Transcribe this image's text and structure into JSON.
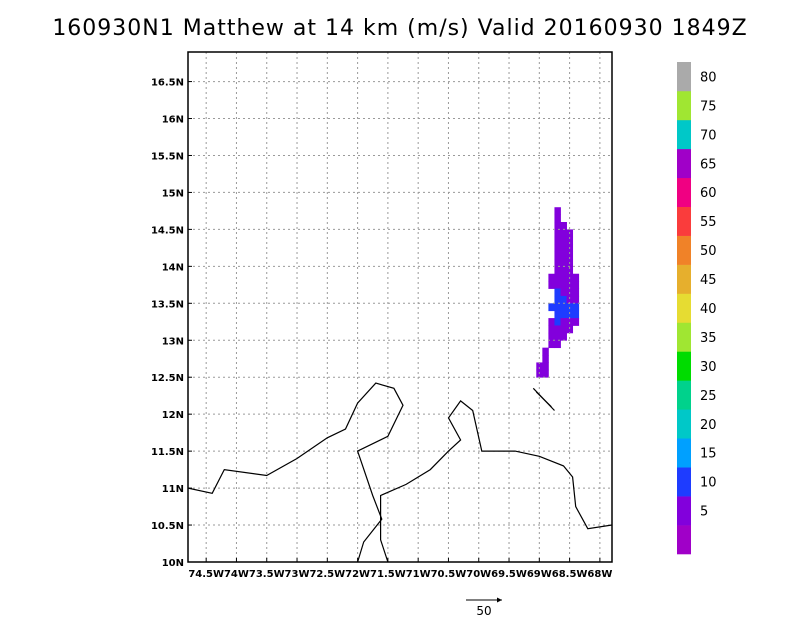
{
  "title": "160930N1 Matthew at 14 km (m/s) Valid 20160930 1849Z",
  "map": {
    "lon_range": [
      -74.8,
      -67.8
    ],
    "lat_range": [
      10.0,
      16.9
    ],
    "lon_ticks": [
      {
        "value": -74.5,
        "label": "74.5W"
      },
      {
        "value": -74.0,
        "label": "74W"
      },
      {
        "value": -73.5,
        "label": "73.5W"
      },
      {
        "value": -73.0,
        "label": "73W"
      },
      {
        "value": -72.5,
        "label": "72.5W"
      },
      {
        "value": -72.0,
        "label": "72W"
      },
      {
        "value": -71.5,
        "label": "71.5W"
      },
      {
        "value": -71.0,
        "label": "71W"
      },
      {
        "value": -70.5,
        "label": "70.5W"
      },
      {
        "value": -70.0,
        "label": "70W"
      },
      {
        "value": -69.5,
        "label": "69.5W"
      },
      {
        "value": -69.0,
        "label": "69W"
      },
      {
        "value": -68.5,
        "label": "68.5W"
      },
      {
        "value": -68.0,
        "label": "68W"
      }
    ],
    "lat_ticks": [
      {
        "value": 10.0,
        "label": "10N"
      },
      {
        "value": 10.5,
        "label": "10.5N"
      },
      {
        "value": 11.0,
        "label": "11N"
      },
      {
        "value": 11.5,
        "label": "11.5N"
      },
      {
        "value": 12.0,
        "label": "12N"
      },
      {
        "value": 12.5,
        "label": "12.5N"
      },
      {
        "value": 13.0,
        "label": "13N"
      },
      {
        "value": 13.5,
        "label": "13.5N"
      },
      {
        "value": 14.0,
        "label": "14N"
      },
      {
        "value": 14.5,
        "label": "14.5N"
      },
      {
        "value": 15.0,
        "label": "15N"
      },
      {
        "value": 15.5,
        "label": "15.5N"
      },
      {
        "value": 16.0,
        "label": "16N"
      },
      {
        "value": 16.5,
        "label": "16.5N"
      }
    ],
    "grid": true,
    "coastlines": [
      [
        [
          -74.8,
          11.0
        ],
        [
          -74.4,
          10.93
        ],
        [
          -74.2,
          11.25
        ],
        [
          -73.5,
          11.17
        ],
        [
          -73.0,
          11.4
        ],
        [
          -72.5,
          11.68
        ],
        [
          -72.2,
          11.8
        ],
        [
          -72.0,
          12.15
        ],
        [
          -71.7,
          12.42
        ],
        [
          -71.4,
          12.35
        ],
        [
          -71.25,
          12.12
        ],
        [
          -71.5,
          11.7
        ],
        [
          -72.0,
          11.5
        ],
        [
          -71.75,
          10.9
        ],
        [
          -71.6,
          10.58
        ],
        [
          -71.9,
          10.27
        ],
        [
          -72.0,
          10.0
        ]
      ],
      [
        [
          -71.5,
          10.0
        ],
        [
          -71.62,
          10.3
        ],
        [
          -71.62,
          10.9
        ],
        [
          -71.2,
          11.05
        ],
        [
          -70.8,
          11.25
        ],
        [
          -70.5,
          11.5
        ],
        [
          -70.3,
          11.65
        ],
        [
          -70.5,
          11.95
        ],
        [
          -70.3,
          12.18
        ],
        [
          -70.1,
          12.05
        ],
        [
          -69.95,
          11.5
        ],
        [
          -69.4,
          11.5
        ],
        [
          -69.0,
          11.43
        ],
        [
          -68.6,
          11.3
        ],
        [
          -68.45,
          11.15
        ],
        [
          -68.4,
          10.75
        ],
        [
          -68.2,
          10.45
        ],
        [
          -67.8,
          10.5
        ]
      ],
      [
        [
          -69.1,
          12.35
        ],
        [
          -68.75,
          12.05
        ]
      ],
      [
        [
          -69.05,
          12.3
        ],
        [
          -68.8,
          12.1
        ]
      ]
    ],
    "wind_cells": [
      {
        "lon": -68.7,
        "lat": 14.75,
        "value": 5
      },
      {
        "lon": -68.7,
        "lat": 14.65,
        "value": 5
      },
      {
        "lon": -68.7,
        "lat": 14.55,
        "value": 5
      },
      {
        "lon": -68.6,
        "lat": 14.55,
        "value": 5
      },
      {
        "lon": -68.7,
        "lat": 14.45,
        "value": 5
      },
      {
        "lon": -68.6,
        "lat": 14.45,
        "value": 5
      },
      {
        "lon": -68.5,
        "lat": 14.45,
        "value": 5
      },
      {
        "lon": -68.7,
        "lat": 14.35,
        "value": 5
      },
      {
        "lon": -68.6,
        "lat": 14.35,
        "value": 5
      },
      {
        "lon": -68.5,
        "lat": 14.35,
        "value": 5
      },
      {
        "lon": -68.7,
        "lat": 14.25,
        "value": 5
      },
      {
        "lon": -68.6,
        "lat": 14.25,
        "value": 5
      },
      {
        "lon": -68.5,
        "lat": 14.25,
        "value": 5
      },
      {
        "lon": -68.7,
        "lat": 14.15,
        "value": 5
      },
      {
        "lon": -68.6,
        "lat": 14.15,
        "value": 5
      },
      {
        "lon": -68.5,
        "lat": 14.15,
        "value": 5
      },
      {
        "lon": -68.7,
        "lat": 14.05,
        "value": 5
      },
      {
        "lon": -68.6,
        "lat": 14.05,
        "value": 5
      },
      {
        "lon": -68.5,
        "lat": 14.05,
        "value": 5
      },
      {
        "lon": -68.7,
        "lat": 13.95,
        "value": 5
      },
      {
        "lon": -68.6,
        "lat": 13.95,
        "value": 5
      },
      {
        "lon": -68.5,
        "lat": 13.95,
        "value": 5
      },
      {
        "lon": -68.8,
        "lat": 13.85,
        "value": 5
      },
      {
        "lon": -68.7,
        "lat": 13.85,
        "value": 5
      },
      {
        "lon": -68.6,
        "lat": 13.85,
        "value": 5
      },
      {
        "lon": -68.5,
        "lat": 13.85,
        "value": 5
      },
      {
        "lon": -68.4,
        "lat": 13.85,
        "value": 5
      },
      {
        "lon": -68.8,
        "lat": 13.75,
        "value": 5
      },
      {
        "lon": -68.7,
        "lat": 13.75,
        "value": 5
      },
      {
        "lon": -68.6,
        "lat": 13.75,
        "value": 5
      },
      {
        "lon": -68.5,
        "lat": 13.75,
        "value": 5
      },
      {
        "lon": -68.4,
        "lat": 13.75,
        "value": 5
      },
      {
        "lon": -68.7,
        "lat": 13.65,
        "value": 10
      },
      {
        "lon": -68.6,
        "lat": 13.65,
        "value": 5
      },
      {
        "lon": -68.5,
        "lat": 13.65,
        "value": 5
      },
      {
        "lon": -68.4,
        "lat": 13.65,
        "value": 5
      },
      {
        "lon": -68.7,
        "lat": 13.55,
        "value": 10
      },
      {
        "lon": -68.6,
        "lat": 13.55,
        "value": 10
      },
      {
        "lon": -68.5,
        "lat": 13.55,
        "value": 5
      },
      {
        "lon": -68.4,
        "lat": 13.55,
        "value": 5
      },
      {
        "lon": -68.8,
        "lat": 13.45,
        "value": 10
      },
      {
        "lon": -68.7,
        "lat": 13.45,
        "value": 10
      },
      {
        "lon": -68.6,
        "lat": 13.45,
        "value": 10
      },
      {
        "lon": -68.5,
        "lat": 13.45,
        "value": 10
      },
      {
        "lon": -68.4,
        "lat": 13.45,
        "value": 10
      },
      {
        "lon": -68.7,
        "lat": 13.35,
        "value": 10
      },
      {
        "lon": -68.6,
        "lat": 13.35,
        "value": 10
      },
      {
        "lon": -68.5,
        "lat": 13.35,
        "value": 10
      },
      {
        "lon": -68.4,
        "lat": 13.35,
        "value": 10
      },
      {
        "lon": -68.8,
        "lat": 13.25,
        "value": 5
      },
      {
        "lon": -68.7,
        "lat": 13.25,
        "value": 10
      },
      {
        "lon": -68.6,
        "lat": 13.25,
        "value": 5
      },
      {
        "lon": -68.5,
        "lat": 13.25,
        "value": 5
      },
      {
        "lon": -68.4,
        "lat": 13.25,
        "value": 5
      },
      {
        "lon": -68.8,
        "lat": 13.15,
        "value": 5
      },
      {
        "lon": -68.7,
        "lat": 13.15,
        "value": 5
      },
      {
        "lon": -68.6,
        "lat": 13.15,
        "value": 5
      },
      {
        "lon": -68.5,
        "lat": 13.15,
        "value": 5
      },
      {
        "lon": -68.8,
        "lat": 13.05,
        "value": 5
      },
      {
        "lon": -68.7,
        "lat": 13.05,
        "value": 5
      },
      {
        "lon": -68.6,
        "lat": 13.05,
        "value": 5
      },
      {
        "lon": -68.8,
        "lat": 12.95,
        "value": 5
      },
      {
        "lon": -68.7,
        "lat": 12.95,
        "value": 5
      },
      {
        "lon": -68.9,
        "lat": 12.85,
        "value": 5
      },
      {
        "lon": -68.9,
        "lat": 12.75,
        "value": 5
      },
      {
        "lon": -69.0,
        "lat": 12.65,
        "value": 5
      },
      {
        "lon": -68.9,
        "lat": 12.65,
        "value": 5
      },
      {
        "lon": -69.0,
        "lat": 12.55,
        "value": 5
      },
      {
        "lon": -68.9,
        "lat": 12.55,
        "value": 5
      }
    ],
    "vector_scale_label": "50"
  },
  "colorbar": {
    "levels": [
      {
        "label": "",
        "color": "#a000c8"
      },
      {
        "label": "5",
        "color": "#8200dc"
      },
      {
        "label": "10",
        "color": "#1e3cff"
      },
      {
        "label": "15",
        "color": "#00a0ff"
      },
      {
        "label": "20",
        "color": "#00c8c8"
      },
      {
        "label": "25",
        "color": "#00d28c"
      },
      {
        "label": "30",
        "color": "#00dc00"
      },
      {
        "label": "35",
        "color": "#a0e632"
      },
      {
        "label": "40",
        "color": "#e6dc32"
      },
      {
        "label": "45",
        "color": "#e6af2d"
      },
      {
        "label": "50",
        "color": "#f08228"
      },
      {
        "label": "55",
        "color": "#fa3c3c"
      },
      {
        "label": "60",
        "color": "#f00082"
      },
      {
        "label": "65",
        "color": "#a000c8"
      },
      {
        "label": "70",
        "color": "#00c8c8"
      },
      {
        "label": "75",
        "color": "#a0e632"
      },
      {
        "label": "80",
        "color": "#aaaaaa"
      }
    ]
  }
}
